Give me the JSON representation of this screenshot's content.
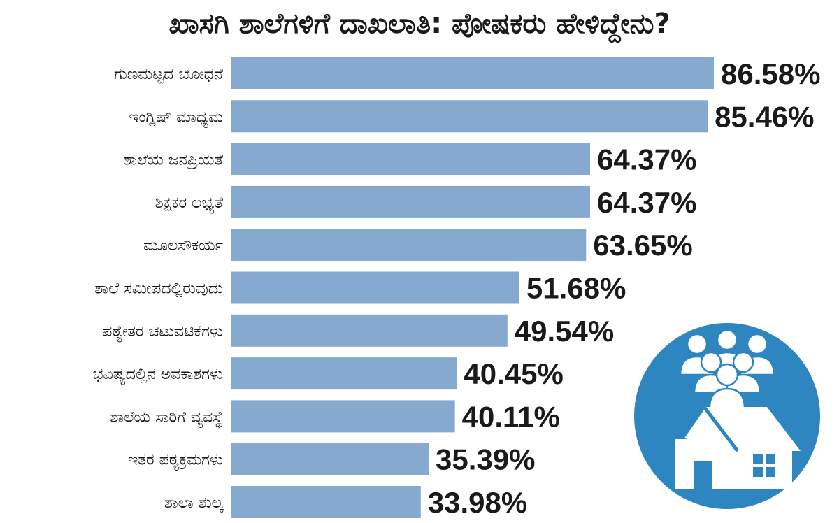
{
  "chart_data": {
    "type": "bar",
    "orientation": "horizontal",
    "title": "ಖಾಸಗಿ ಶಾಲೆಗಳಿಗೆ ದಾಖಲಾತಿ: ಪೋಷಕರು ಹೇಳಿದ್ದೇನು?",
    "categories": [
      "ಗುಣಮಟ್ಟದ ಬೋಧನೆ",
      "ಇಂಗ್ಲಿಷ್ ಮಾಧ್ಯಮ",
      "ಶಾಲೆಯ ಜನಪ್ರಿಯತೆ",
      "ಶಿಕ್ಷಕರ ಲಭ್ಯತೆ",
      "ಮೂಲಸೌಕರ್ಯ",
      "ಶಾಲೆ ಸಮೀಪದಲ್ಲಿರುವುದು",
      "ಪಠ್ಯೇತರ ಚಟುವಟಿಕೆಗಳು",
      "ಭವಿಷ್ಯದಲ್ಲಿನ ಅವಕಾಶಗಳು",
      "ಶಾಲೆಯ ಸಾರಿಗೆ ವ್ಯವಸ್ಥೆ",
      "ಇತರ ಪಠ್ಯಕ್ರಮಗಳು",
      "ಶಾಲಾ ಶುಲ್ಕ"
    ],
    "values": [
      86.58,
      85.46,
      64.37,
      64.37,
      63.65,
      51.68,
      49.54,
      40.45,
      40.11,
      35.39,
      33.98
    ],
    "value_labels": [
      "86.58%",
      "85.46%",
      "64.37%",
      "64.37%",
      "63.65%",
      "51.68%",
      "49.54%",
      "40.45%",
      "40.11%",
      "35.39%",
      "33.98%"
    ],
    "xlim": [
      0,
      100
    ],
    "grid": false,
    "legend": "none",
    "bar_color": "#86a9d0",
    "icon_color": "#2e86c1"
  }
}
